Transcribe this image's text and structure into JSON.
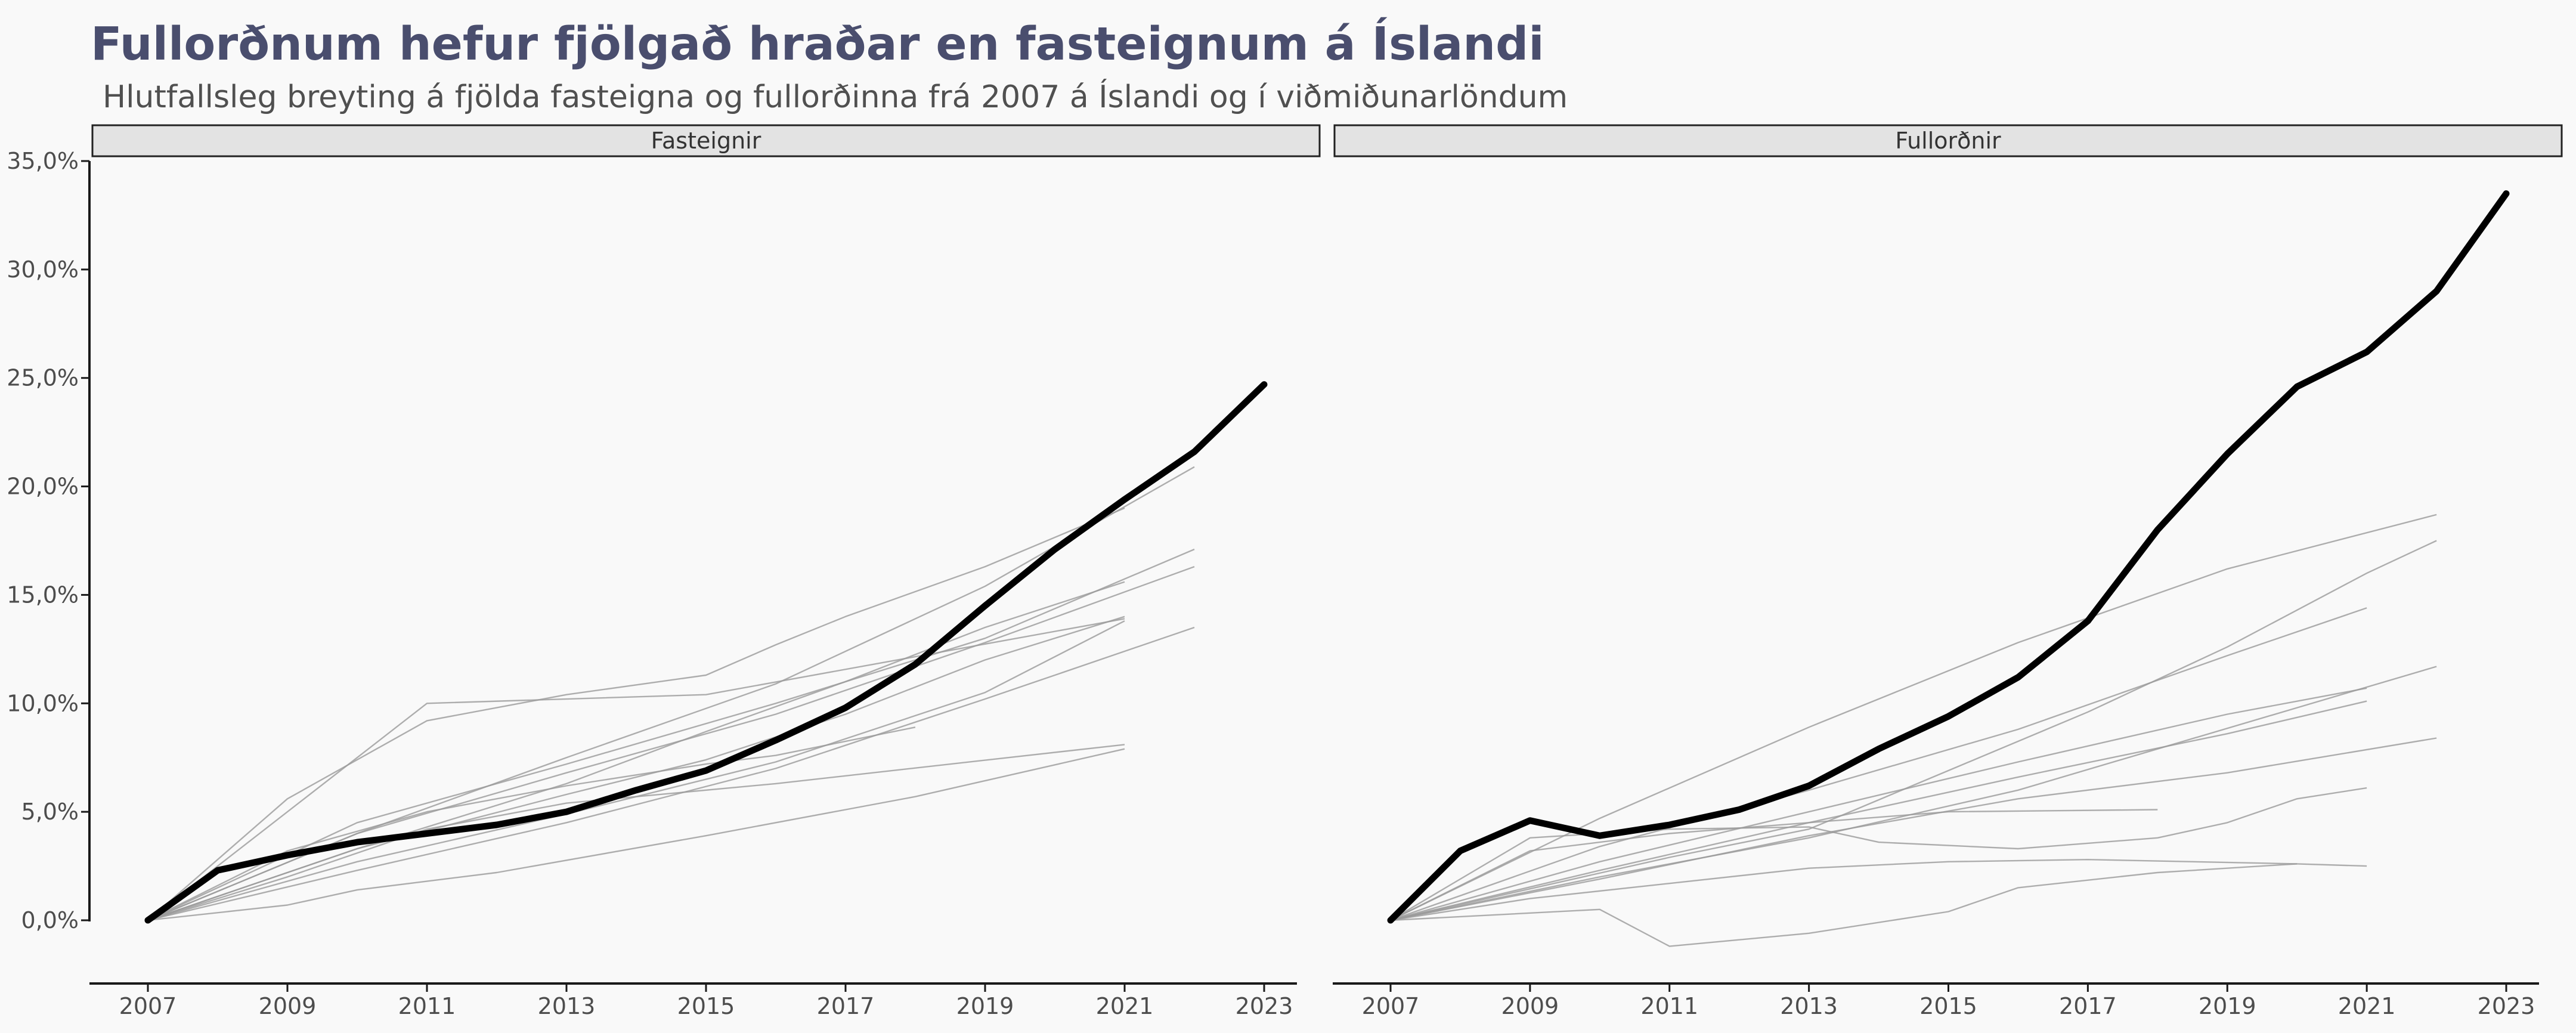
{
  "title": "Fullorðnum hefur fjölgað hraðar en fasteignum á Íslandi",
  "subtitle": "Hlutfallsleg breyting á fjölda fasteigna og fullorðinna frá 2007 á Íslandi og í viðmiðunarlöndum",
  "colors": {
    "background": "#f9f9f9",
    "title": "#4a4e6e",
    "iceland_line": "#000000",
    "comparison_lines": "#9a9a9a",
    "strip_fill": "#e3e3e3",
    "strip_border": "#222222"
  },
  "chart_data": [
    {
      "type": "line",
      "panel": "Fasteignir",
      "x_ticks": [
        "2007",
        "2009",
        "2011",
        "2013",
        "2015",
        "2017",
        "2019",
        "2021",
        "2023"
      ],
      "y_ticks": [
        "0,0%",
        "5,0%",
        "10,0%",
        "15,0%",
        "20,0%",
        "25,0%",
        "30,0%",
        "35,0%"
      ],
      "xlim": [
        2007,
        2023
      ],
      "ylim": [
        0,
        35
      ],
      "grid": false,
      "highlight": {
        "x": [
          2007,
          2008,
          2009,
          2010,
          2011,
          2012,
          2013,
          2014,
          2015,
          2016,
          2017,
          2018,
          2019,
          2020,
          2021,
          2022,
          2023
        ],
        "y": [
          0.0,
          2.3,
          3.0,
          3.6,
          4.0,
          4.4,
          5.0,
          6.0,
          6.9,
          8.3,
          9.8,
          11.8,
          14.5,
          17.1,
          19.4,
          21.6,
          24.7
        ]
      },
      "comparison": [
        {
          "x": [
            2007,
            2011,
            2015,
            2021
          ],
          "y": [
            0.0,
            10.0,
            10.4,
            13.9
          ]
        },
        {
          "x": [
            2007,
            2009,
            2011,
            2013,
            2015,
            2016,
            2017,
            2019,
            2021
          ],
          "y": [
            0.0,
            5.6,
            9.2,
            10.4,
            11.3,
            12.7,
            14.0,
            16.3,
            19.0
          ]
        },
        {
          "x": [
            2007,
            2010,
            2013,
            2016,
            2019,
            2022
          ],
          "y": [
            0.0,
            4.0,
            7.5,
            10.9,
            15.4,
            20.9
          ]
        },
        {
          "x": [
            2007,
            2010,
            2013,
            2016,
            2019,
            2022
          ],
          "y": [
            0.0,
            4.5,
            7.2,
            10.0,
            13.0,
            17.1
          ]
        },
        {
          "x": [
            2007,
            2010,
            2013,
            2016,
            2019,
            2022
          ],
          "y": [
            0.0,
            4.0,
            6.8,
            9.5,
            12.8,
            16.3
          ]
        },
        {
          "x": [
            2007,
            2010,
            2013,
            2015,
            2017,
            2019,
            2021
          ],
          "y": [
            0.0,
            3.3,
            6.3,
            8.7,
            11.0,
            13.5,
            15.6
          ]
        },
        {
          "x": [
            2007,
            2010,
            2013,
            2015,
            2017,
            2019,
            2021
          ],
          "y": [
            0.0,
            3.3,
            5.8,
            7.4,
            9.5,
            12.0,
            14.0
          ]
        },
        {
          "x": [
            2007,
            2010,
            2013,
            2016,
            2019,
            2021
          ],
          "y": [
            0.0,
            2.7,
            4.9,
            7.3,
            10.5,
            13.8
          ]
        },
        {
          "x": [
            2007,
            2010,
            2013,
            2016,
            2019,
            2022
          ],
          "y": [
            0.0,
            2.3,
            4.5,
            7.0,
            10.2,
            13.5
          ]
        },
        {
          "x": [
            2007,
            2009,
            2011,
            2013,
            2015,
            2016,
            2018
          ],
          "y": [
            0.0,
            3.2,
            5.0,
            6.2,
            7.2,
            7.6,
            8.9
          ]
        },
        {
          "x": [
            2007,
            2009,
            2011,
            2013,
            2016,
            2021
          ],
          "y": [
            0.0,
            2.0,
            4.2,
            5.4,
            6.3,
            8.1
          ]
        },
        {
          "x": [
            2007,
            2009,
            2010,
            2012,
            2015,
            2018,
            2021
          ],
          "y": [
            0.0,
            0.7,
            1.4,
            2.2,
            3.9,
            5.7,
            7.9
          ]
        }
      ]
    },
    {
      "type": "line",
      "panel": "Fullorðnir",
      "x_ticks": [
        "2007",
        "2009",
        "2011",
        "2013",
        "2015",
        "2017",
        "2019",
        "2021",
        "2023"
      ],
      "y_ticks": [
        "0,0%",
        "5,0%",
        "10,0%",
        "15,0%",
        "20,0%",
        "25,0%",
        "30,0%",
        "35,0%"
      ],
      "xlim": [
        2007,
        2023
      ],
      "ylim": [
        0,
        35
      ],
      "grid": false,
      "highlight": {
        "x": [
          2007,
          2008,
          2009,
          2010,
          2011,
          2012,
          2013,
          2014,
          2015,
          2016,
          2017,
          2018,
          2019,
          2020,
          2021,
          2022,
          2023
        ],
        "y": [
          0.0,
          3.2,
          4.6,
          3.9,
          4.4,
          5.1,
          6.2,
          7.9,
          9.4,
          11.2,
          13.8,
          18.0,
          21.5,
          24.6,
          26.2,
          29.0,
          33.5
        ]
      },
      "comparison": [
        {
          "x": [
            2007,
            2010,
            2013,
            2016,
            2019,
            2022
          ],
          "y": [
            0.0,
            4.7,
            8.9,
            12.8,
            16.2,
            18.7
          ]
        },
        {
          "x": [
            2007,
            2011,
            2013,
            2015,
            2017,
            2019,
            2021,
            2022
          ],
          "y": [
            0.0,
            2.9,
            4.2,
            6.9,
            9.6,
            12.6,
            16.0,
            17.5
          ]
        },
        {
          "x": [
            2007,
            2010,
            2013,
            2016,
            2019,
            2021
          ],
          "y": [
            0.0,
            3.4,
            6.0,
            8.8,
            12.2,
            14.4
          ]
        },
        {
          "x": [
            2007,
            2010,
            2013,
            2016,
            2019,
            2021
          ],
          "y": [
            0.0,
            2.7,
            5.0,
            7.3,
            9.5,
            10.7
          ]
        },
        {
          "x": [
            2007,
            2010,
            2013,
            2016,
            2019,
            2021
          ],
          "y": [
            0.0,
            2.3,
            4.5,
            6.6,
            8.6,
            10.1
          ]
        },
        {
          "x": [
            2007,
            2010,
            2013,
            2016,
            2018,
            2020,
            2022
          ],
          "y": [
            0.0,
            2.0,
            3.8,
            6.0,
            7.9,
            9.8,
            11.7
          ]
        },
        {
          "x": [
            2007,
            2010,
            2013,
            2016,
            2019,
            2022
          ],
          "y": [
            0.0,
            1.9,
            3.9,
            5.6,
            6.8,
            8.4
          ]
        },
        {
          "x": [
            2007,
            2009,
            2011,
            2013,
            2015,
            2018
          ],
          "y": [
            0.0,
            3.2,
            4.0,
            4.5,
            5.0,
            5.1
          ]
        },
        {
          "x": [
            2007,
            2009,
            2011,
            2013,
            2014,
            2016,
            2018,
            2019,
            2020,
            2021
          ],
          "y": [
            0.0,
            3.8,
            4.2,
            4.3,
            3.6,
            3.3,
            3.8,
            4.5,
            5.6,
            6.1
          ]
        },
        {
          "x": [
            2007,
            2009,
            2011,
            2013,
            2015,
            2017,
            2020,
            2021
          ],
          "y": [
            0.0,
            1.0,
            1.7,
            2.4,
            2.7,
            2.8,
            2.6,
            2.5
          ]
        },
        {
          "x": [
            2007,
            2010,
            2011,
            2013,
            2015,
            2016,
            2018,
            2020
          ],
          "y": [
            0.0,
            0.5,
            -1.2,
            -0.6,
            0.4,
            1.5,
            2.2,
            2.6
          ]
        }
      ]
    }
  ]
}
